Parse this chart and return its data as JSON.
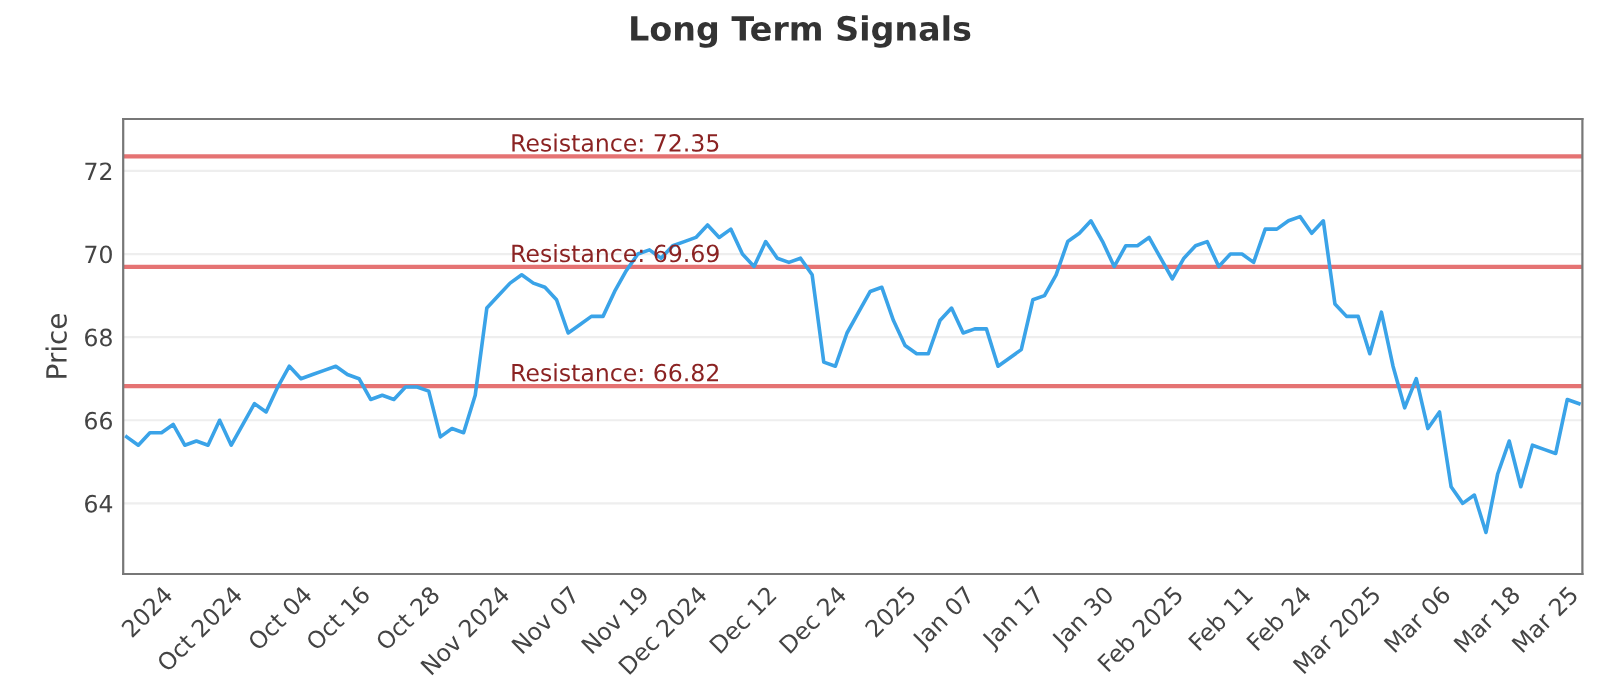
{
  "chart_data": {
    "type": "line",
    "title": "Long Term Signals",
    "ylabel": "Price",
    "categories": [
      null,
      null,
      null,
      "2024",
      null,
      null,
      null,
      null,
      null,
      "Oct 2024",
      null,
      null,
      null,
      null,
      null,
      "Oct 04",
      null,
      null,
      null,
      null,
      "Oct 16",
      null,
      null,
      null,
      null,
      null,
      "Oct 28",
      null,
      null,
      null,
      null,
      null,
      "Nov 2024",
      null,
      null,
      null,
      null,
      null,
      "Nov 07",
      null,
      null,
      null,
      null,
      null,
      "Nov 19",
      null,
      null,
      null,
      null,
      "Dec 2024",
      null,
      null,
      null,
      null,
      null,
      "Dec 12",
      null,
      null,
      null,
      null,
      null,
      "Dec 24",
      null,
      null,
      null,
      null,
      null,
      "2025",
      null,
      null,
      null,
      null,
      "Jan 07",
      null,
      null,
      null,
      null,
      null,
      "Jan 17",
      null,
      null,
      null,
      null,
      null,
      "Jan 30",
      null,
      null,
      null,
      null,
      null,
      "Feb 2025",
      null,
      null,
      null,
      null,
      null,
      "Feb 11",
      null,
      null,
      null,
      null,
      "Feb 24",
      null,
      null,
      null,
      null,
      null,
      "Mar 2025",
      null,
      null,
      null,
      null,
      null,
      "Mar 06",
      null,
      null,
      null,
      null,
      null,
      "Mar 18",
      null,
      null,
      null,
      null,
      "Mar 25",
      null
    ],
    "series": [
      {
        "color": "#3aa3e8",
        "values": [
          65.6,
          65.4,
          65.7,
          65.7,
          65.9,
          65.4,
          65.5,
          65.4,
          66.0,
          65.4,
          65.9,
          66.4,
          66.2,
          66.8,
          67.3,
          67.0,
          67.1,
          67.2,
          67.3,
          67.1,
          67.0,
          66.5,
          66.6,
          66.5,
          66.8,
          66.8,
          66.7,
          65.6,
          65.8,
          65.7,
          66.6,
          68.7,
          69.0,
          69.3,
          69.5,
          69.3,
          69.2,
          68.9,
          68.1,
          68.3,
          68.5,
          68.5,
          69.1,
          69.6,
          70.0,
          70.1,
          69.9,
          70.2,
          70.3,
          70.4,
          70.7,
          70.4,
          70.6,
          70.0,
          69.7,
          70.3,
          69.9,
          69.8,
          69.9,
          69.5,
          67.4,
          67.3,
          68.1,
          68.6,
          69.1,
          69.2,
          68.4,
          67.8,
          67.6,
          67.6,
          68.4,
          68.7,
          68.1,
          68.2,
          68.2,
          67.3,
          67.5,
          67.7,
          68.9,
          69.0,
          69.5,
          70.3,
          70.5,
          70.8,
          70.3,
          69.7,
          70.2,
          70.2,
          70.4,
          69.9,
          69.4,
          69.9,
          70.2,
          70.3,
          69.7,
          70.0,
          70.0,
          69.8,
          70.6,
          70.6,
          70.8,
          70.9,
          70.5,
          70.8,
          68.8,
          68.5,
          68.5,
          67.6,
          68.6,
          67.3,
          66.3,
          67.0,
          65.8,
          66.2,
          64.4,
          64.0,
          64.2,
          63.3,
          64.7,
          65.5,
          64.4,
          65.4,
          65.3,
          65.2,
          66.5,
          66.4
        ]
      }
    ],
    "ylim": [
      62.3,
      73.25
    ],
    "yticks": [
      64,
      66,
      68,
      70,
      72
    ],
    "grid": "y",
    "marker": "none",
    "line_style": "solid",
    "ref_lines": [
      {
        "axis": "y",
        "value": 72.35,
        "label": "Resistance: 72.35",
        "color": "#e57373"
      },
      {
        "axis": "y",
        "value": 69.69,
        "label": "Resistance: 69.69",
        "color": "#e57373"
      },
      {
        "axis": "y",
        "value": 66.82,
        "label": "Resistance: 66.82",
        "color": "#e57373"
      }
    ]
  }
}
